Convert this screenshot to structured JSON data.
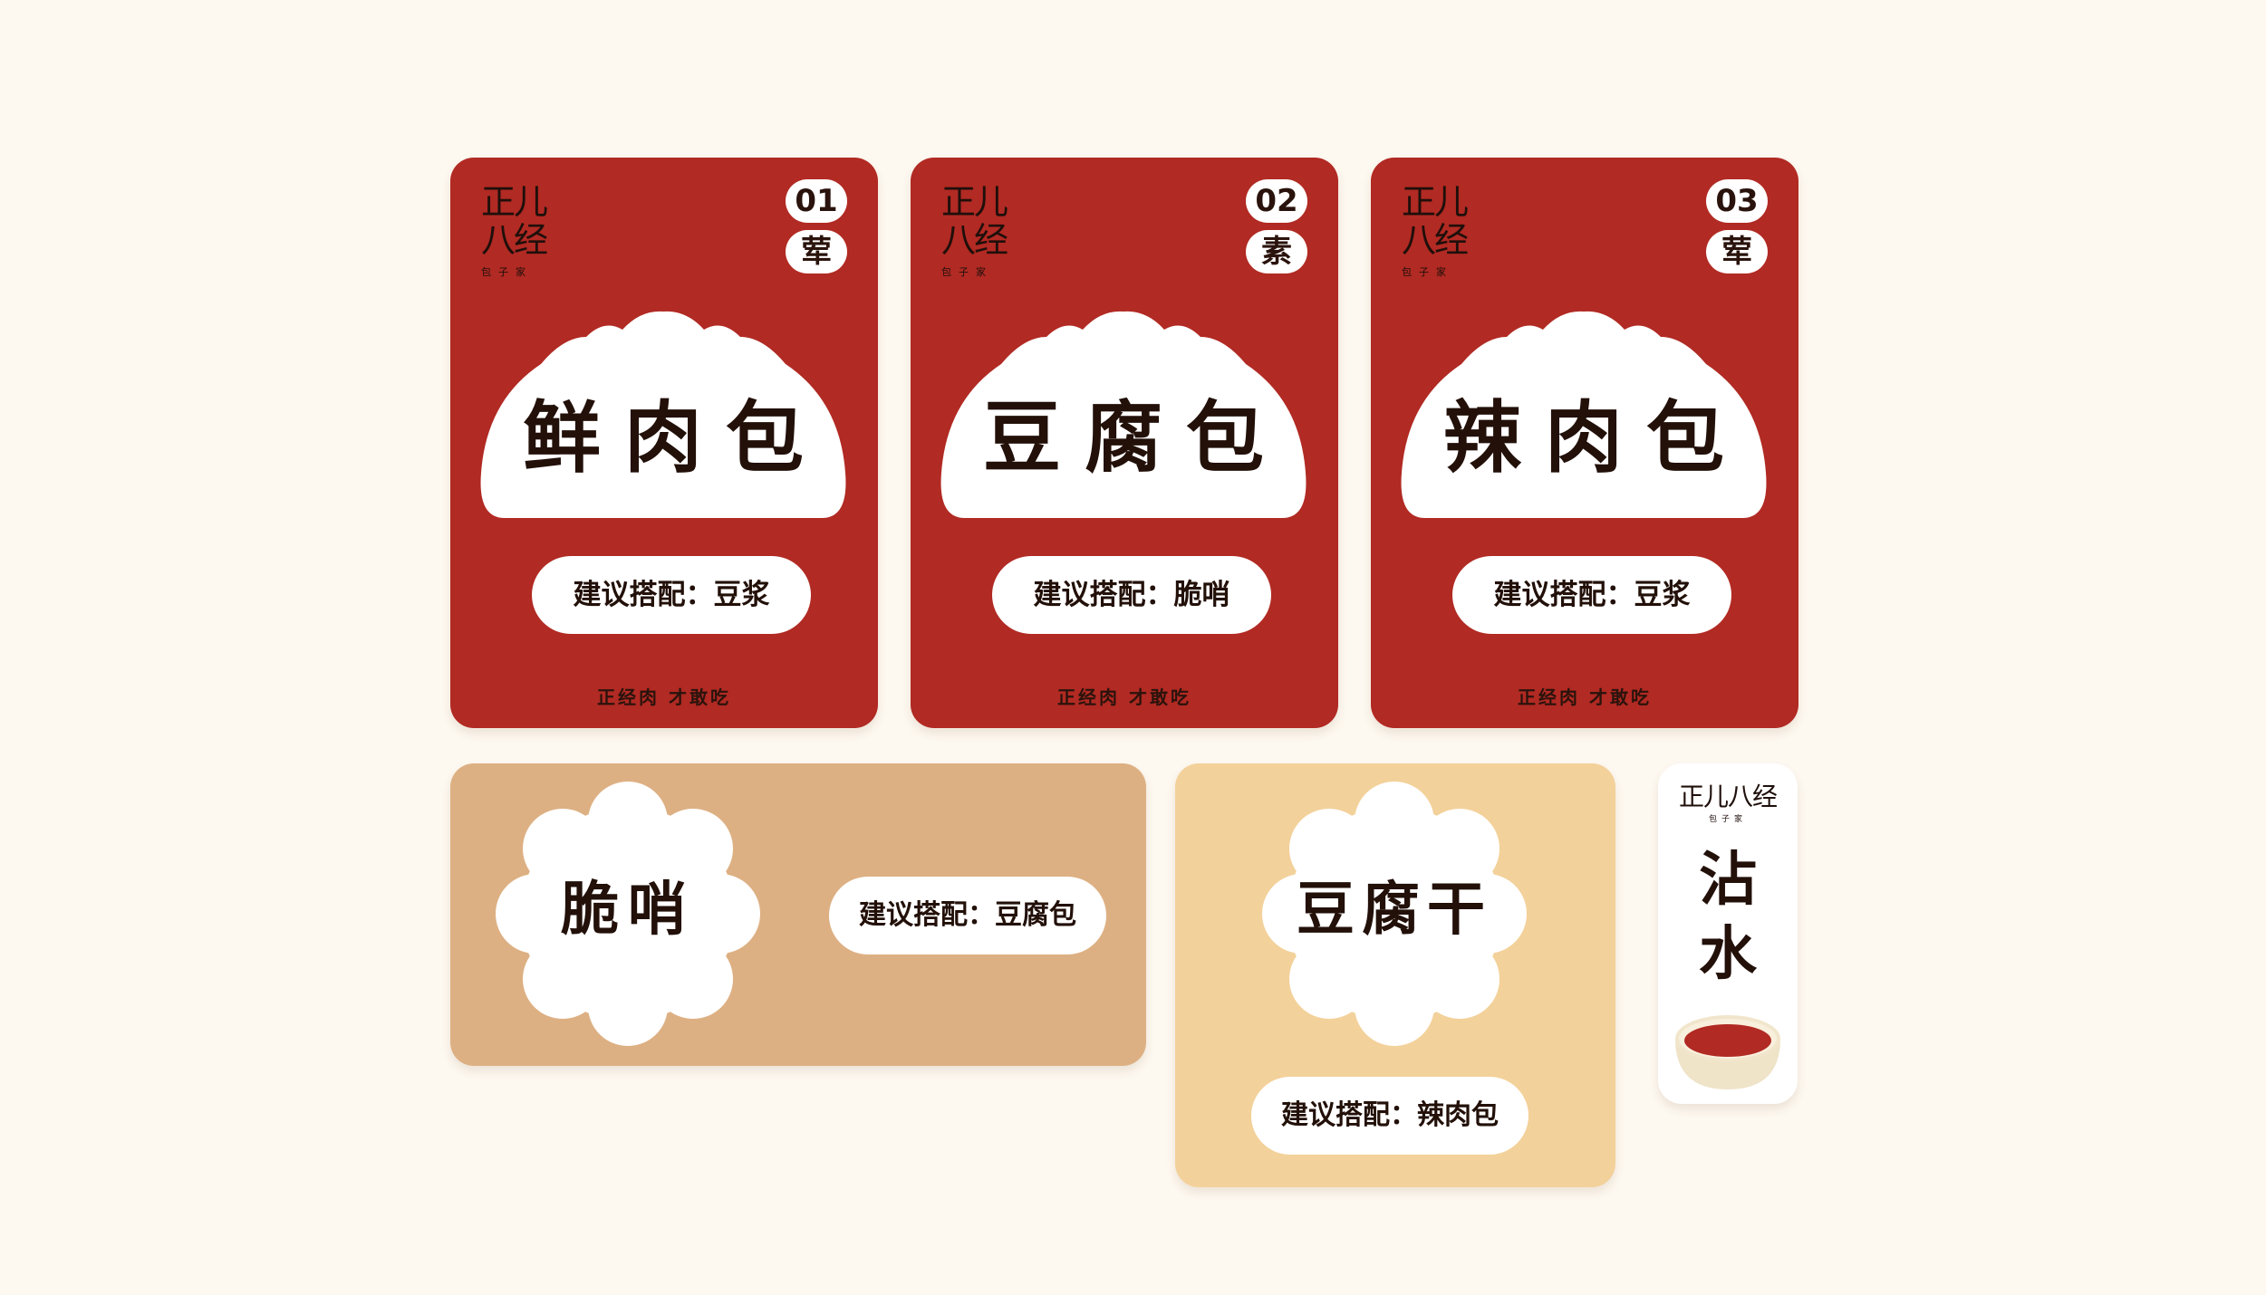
{
  "brand": {
    "line1": "正儿",
    "line2": "八经",
    "sub": "包子家",
    "inline": "正儿八经"
  },
  "cards": [
    {
      "number": "01",
      "kind": "荤",
      "title": "鲜肉包",
      "pairing": "建议搭配：豆浆",
      "slogan": "正经肉 才敢吃"
    },
    {
      "number": "02",
      "kind": "素",
      "title": "豆腐包",
      "pairing": "建议搭配：脆哨",
      "slogan": "正经肉 才敢吃"
    },
    {
      "number": "03",
      "kind": "荤",
      "title": "辣肉包",
      "pairing": "建议搭配：豆浆",
      "slogan": "正经肉 才敢吃"
    }
  ],
  "tan_card": {
    "title": "脆哨",
    "pairing": "建议搭配：豆腐包"
  },
  "cream_card": {
    "title": "豆腐干",
    "pairing": "建议搭配：辣肉包"
  },
  "sauce_card": {
    "title_line1": "沾",
    "title_line2": "水",
    "icon": "sauce-bowl-icon"
  },
  "colors": {
    "red": "#b12a23",
    "tan": "#ddb083",
    "cream": "#f3d19a",
    "background": "#fdf8f0",
    "ink": "#221009"
  }
}
